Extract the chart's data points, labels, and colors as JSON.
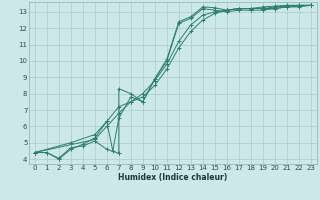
{
  "title": "",
  "xlabel": "Humidex (Indice chaleur)",
  "ylabel": "",
  "bg_color": "#cce8e8",
  "grid_color": "#aacaca",
  "line_color": "#2e7d6e",
  "marker": "+",
  "xlim": [
    -0.5,
    23.5
  ],
  "ylim": [
    3.7,
    13.6
  ],
  "xticks": [
    0,
    1,
    2,
    3,
    4,
    5,
    6,
    7,
    8,
    9,
    10,
    11,
    12,
    13,
    14,
    15,
    16,
    17,
    18,
    19,
    20,
    21,
    22,
    23
  ],
  "yticks": [
    4,
    5,
    6,
    7,
    8,
    9,
    10,
    11,
    12,
    13
  ],
  "lines": [
    [
      [
        0,
        4.4
      ],
      [
        1,
        4.4
      ],
      [
        2,
        4.05
      ],
      [
        3,
        4.7
      ],
      [
        4,
        4.8
      ],
      [
        5,
        5.1
      ],
      [
        6,
        4.6
      ],
      [
        7,
        4.35
      ],
      [
        7,
        8.3
      ],
      [
        8,
        8.0
      ],
      [
        9,
        7.5
      ],
      [
        10,
        8.9
      ],
      [
        11,
        10.1
      ],
      [
        12,
        12.4
      ],
      [
        13,
        12.7
      ],
      [
        14,
        13.3
      ],
      [
        15,
        13.25
      ],
      [
        16,
        13.1
      ],
      [
        17,
        13.2
      ],
      [
        18,
        13.2
      ],
      [
        19,
        13.2
      ],
      [
        20,
        13.2
      ],
      [
        21,
        13.3
      ],
      [
        22,
        13.3
      ],
      [
        23,
        13.4
      ]
    ],
    [
      [
        0,
        4.4
      ],
      [
        1,
        4.4
      ],
      [
        2,
        4.0
      ],
      [
        3,
        4.6
      ],
      [
        4,
        4.9
      ],
      [
        5,
        5.3
      ],
      [
        6,
        6.3
      ],
      [
        6.5,
        4.5
      ],
      [
        7,
        6.5
      ],
      [
        8,
        7.8
      ],
      [
        9,
        7.5
      ],
      [
        10,
        8.9
      ],
      [
        11,
        10.0
      ],
      [
        12,
        12.3
      ],
      [
        13,
        12.6
      ],
      [
        14,
        13.2
      ],
      [
        15,
        13.1
      ],
      [
        16,
        13.0
      ],
      [
        17,
        13.1
      ],
      [
        18,
        13.1
      ],
      [
        19,
        13.1
      ],
      [
        20,
        13.2
      ],
      [
        21,
        13.3
      ],
      [
        22,
        13.35
      ],
      [
        23,
        13.4
      ]
    ],
    [
      [
        0,
        4.4
      ],
      [
        3,
        5.0
      ],
      [
        5,
        5.5
      ],
      [
        6,
        6.3
      ],
      [
        7,
        7.2
      ],
      [
        8,
        7.5
      ],
      [
        9,
        7.8
      ],
      [
        10,
        8.5
      ],
      [
        11,
        9.5
      ],
      [
        12,
        10.8
      ],
      [
        13,
        11.8
      ],
      [
        14,
        12.5
      ],
      [
        15,
        12.9
      ],
      [
        16,
        13.1
      ],
      [
        17,
        13.2
      ],
      [
        18,
        13.2
      ],
      [
        19,
        13.2
      ],
      [
        20,
        13.3
      ],
      [
        21,
        13.35
      ],
      [
        22,
        13.4
      ],
      [
        23,
        13.4
      ]
    ],
    [
      [
        0,
        4.4
      ],
      [
        5,
        5.2
      ],
      [
        6,
        6.0
      ],
      [
        7,
        6.8
      ],
      [
        8,
        7.5
      ],
      [
        9,
        8.0
      ],
      [
        10,
        8.8
      ],
      [
        11,
        9.8
      ],
      [
        12,
        11.2
      ],
      [
        13,
        12.2
      ],
      [
        14,
        12.8
      ],
      [
        15,
        13.0
      ],
      [
        16,
        13.1
      ],
      [
        17,
        13.2
      ],
      [
        18,
        13.2
      ],
      [
        19,
        13.3
      ],
      [
        20,
        13.35
      ],
      [
        21,
        13.4
      ],
      [
        22,
        13.4
      ],
      [
        23,
        13.4
      ]
    ]
  ]
}
